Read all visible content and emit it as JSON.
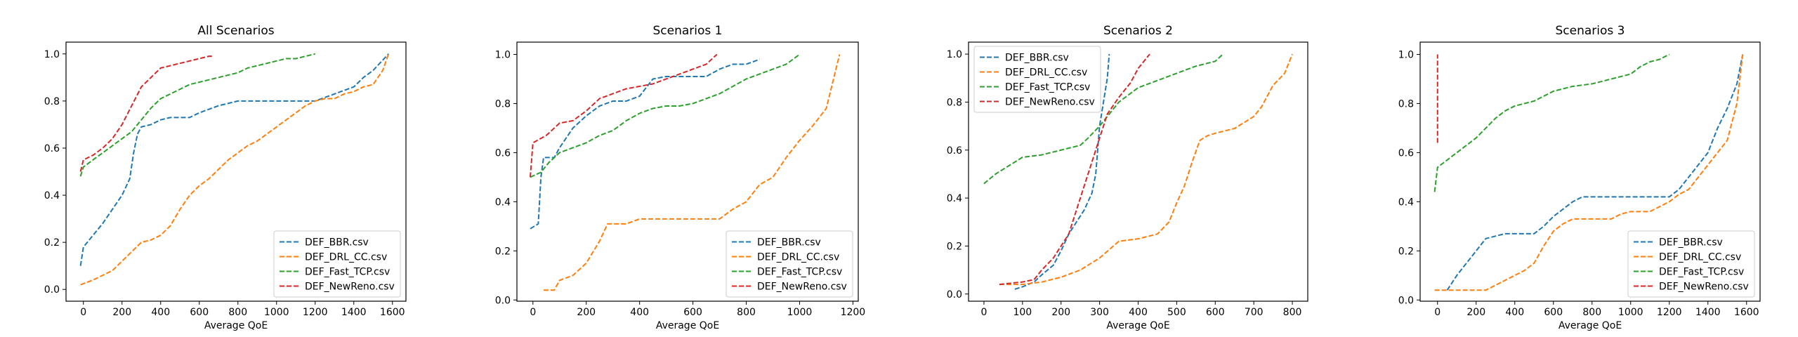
{
  "colors": {
    "DEF_BBR.csv": "#1f77b4",
    "DEF_DRL_CC.csv": "#ff7f0e",
    "DEF_Fast_TCP.csv": "#2ca02c",
    "DEF_NewReno.csv": "#d62728"
  },
  "chart_data": [
    {
      "type": "line",
      "title": "All Scenarios",
      "xlabel": "Average QoE",
      "ylabel": "",
      "xlim": [
        -90,
        1670
      ],
      "ylim": [
        -0.05,
        1.05
      ],
      "xticks": [
        0,
        200,
        400,
        600,
        800,
        1000,
        1200,
        1400,
        1600
      ],
      "yticks": [
        0.0,
        0.2,
        0.4,
        0.6,
        0.8,
        1.0
      ],
      "legend_position": "lower-right",
      "grid": false,
      "series": [
        {
          "name": "DEF_BBR.csv",
          "x": [
            -15,
            0,
            50,
            100,
            150,
            200,
            240,
            260,
            280,
            300,
            350,
            400,
            450,
            550,
            600,
            700,
            800,
            1000,
            1200,
            1300,
            1400,
            1450,
            1500,
            1580
          ],
          "y": [
            0.1,
            0.18,
            0.23,
            0.28,
            0.34,
            0.4,
            0.47,
            0.58,
            0.66,
            0.69,
            0.7,
            0.72,
            0.73,
            0.73,
            0.75,
            0.78,
            0.8,
            0.8,
            0.8,
            0.83,
            0.86,
            0.9,
            0.93,
            1.0
          ]
        },
        {
          "name": "DEF_DRL_CC.csv",
          "x": [
            -15,
            50,
            100,
            150,
            200,
            250,
            300,
            350,
            400,
            450,
            500,
            550,
            600,
            650,
            700,
            750,
            800,
            850,
            900,
            950,
            1000,
            1050,
            1100,
            1150,
            1200,
            1250,
            1300,
            1350,
            1400,
            1450,
            1500,
            1550,
            1580
          ],
          "y": [
            0.02,
            0.04,
            0.06,
            0.08,
            0.12,
            0.16,
            0.2,
            0.21,
            0.23,
            0.27,
            0.34,
            0.4,
            0.44,
            0.47,
            0.51,
            0.55,
            0.58,
            0.61,
            0.63,
            0.66,
            0.69,
            0.72,
            0.75,
            0.78,
            0.8,
            0.81,
            0.81,
            0.83,
            0.84,
            0.86,
            0.87,
            0.93,
            1.0
          ]
        },
        {
          "name": "DEF_Fast_TCP.csv",
          "x": [
            -15,
            0,
            50,
            100,
            150,
            200,
            250,
            300,
            350,
            400,
            450,
            500,
            550,
            600,
            650,
            700,
            750,
            800,
            850,
            900,
            950,
            1000,
            1050,
            1100,
            1150,
            1200
          ],
          "y": [
            0.48,
            0.52,
            0.55,
            0.58,
            0.61,
            0.64,
            0.67,
            0.72,
            0.77,
            0.81,
            0.83,
            0.85,
            0.87,
            0.88,
            0.89,
            0.9,
            0.91,
            0.92,
            0.94,
            0.95,
            0.96,
            0.97,
            0.98,
            0.98,
            0.99,
            1.0
          ]
        },
        {
          "name": "DEF_NewReno.csv",
          "x": [
            -15,
            0,
            50,
            100,
            150,
            200,
            250,
            300,
            350,
            400,
            450,
            500,
            550,
            600,
            650,
            670
          ],
          "y": [
            0.5,
            0.55,
            0.57,
            0.6,
            0.64,
            0.7,
            0.78,
            0.86,
            0.9,
            0.94,
            0.95,
            0.96,
            0.97,
            0.98,
            0.99,
            0.99
          ]
        }
      ]
    },
    {
      "type": "line",
      "title": "Scenarios 1",
      "xlabel": "Average QoE",
      "ylabel": "",
      "xlim": [
        -60,
        1220
      ],
      "ylim": [
        -0.005,
        1.05
      ],
      "xticks": [
        0,
        200,
        400,
        600,
        800,
        1000,
        1200
      ],
      "yticks": [
        0.0,
        0.2,
        0.4,
        0.6,
        0.8,
        1.0
      ],
      "legend_position": "lower-right",
      "grid": false,
      "series": [
        {
          "name": "DEF_BBR.csv",
          "x": [
            -10,
            20,
            30,
            40,
            80,
            100,
            150,
            200,
            250,
            300,
            350,
            400,
            450,
            500,
            550,
            600,
            650,
            700,
            750,
            800,
            850
          ],
          "y": [
            0.29,
            0.31,
            0.5,
            0.58,
            0.58,
            0.62,
            0.7,
            0.75,
            0.79,
            0.81,
            0.81,
            0.83,
            0.9,
            0.91,
            0.91,
            0.91,
            0.91,
            0.94,
            0.96,
            0.96,
            0.98
          ]
        },
        {
          "name": "DEF_DRL_CC.csv",
          "x": [
            40,
            80,
            100,
            150,
            200,
            250,
            280,
            300,
            350,
            400,
            450,
            500,
            550,
            600,
            650,
            700,
            750,
            800,
            850,
            900,
            950,
            1000,
            1050,
            1100,
            1150
          ],
          "y": [
            0.04,
            0.04,
            0.08,
            0.1,
            0.15,
            0.24,
            0.31,
            0.31,
            0.31,
            0.33,
            0.33,
            0.33,
            0.33,
            0.33,
            0.33,
            0.33,
            0.37,
            0.4,
            0.47,
            0.5,
            0.58,
            0.65,
            0.71,
            0.78,
            1.0
          ]
        },
        {
          "name": "DEF_Fast_TCP.csv",
          "x": [
            -10,
            30,
            60,
            100,
            150,
            200,
            250,
            300,
            350,
            400,
            450,
            500,
            550,
            600,
            650,
            700,
            750,
            800,
            850,
            900,
            950,
            1000
          ],
          "y": [
            0.5,
            0.52,
            0.56,
            0.6,
            0.62,
            0.64,
            0.67,
            0.69,
            0.73,
            0.76,
            0.78,
            0.79,
            0.79,
            0.8,
            0.82,
            0.84,
            0.87,
            0.9,
            0.92,
            0.94,
            0.96,
            1.0
          ]
        },
        {
          "name": "DEF_NewReno.csv",
          "x": [
            -10,
            0,
            50,
            100,
            150,
            200,
            250,
            300,
            350,
            400,
            450,
            500,
            550,
            600,
            650,
            690
          ],
          "y": [
            0.5,
            0.64,
            0.67,
            0.72,
            0.73,
            0.77,
            0.82,
            0.84,
            0.86,
            0.87,
            0.88,
            0.9,
            0.92,
            0.94,
            0.96,
            1.0
          ]
        }
      ]
    },
    {
      "type": "line",
      "title": "Scenarios 2",
      "xlabel": "Average QoE",
      "ylabel": "",
      "xlim": [
        -40,
        840
      ],
      "ylim": [
        -0.03,
        1.05
      ],
      "xticks": [
        0,
        100,
        200,
        300,
        400,
        500,
        600,
        700,
        800
      ],
      "yticks": [
        0.0,
        0.2,
        0.4,
        0.6,
        0.8,
        1.0
      ],
      "legend_position": "upper-left",
      "grid": false,
      "series": [
        {
          "name": "DEF_BBR.csv",
          "x": [
            80,
            100,
            130,
            150,
            180,
            200,
            220,
            240,
            260,
            280,
            290,
            300,
            310,
            320,
            325
          ],
          "y": [
            0.02,
            0.03,
            0.05,
            0.08,
            0.12,
            0.18,
            0.25,
            0.3,
            0.35,
            0.42,
            0.5,
            0.7,
            0.8,
            0.9,
            1.0
          ]
        },
        {
          "name": "DEF_DRL_CC.csv",
          "x": [
            40,
            100,
            150,
            200,
            250,
            300,
            350,
            400,
            450,
            480,
            500,
            520,
            540,
            560,
            580,
            600,
            650,
            700,
            720,
            750,
            780,
            800
          ],
          "y": [
            0.04,
            0.04,
            0.05,
            0.07,
            0.1,
            0.15,
            0.22,
            0.23,
            0.25,
            0.3,
            0.38,
            0.45,
            0.55,
            0.64,
            0.66,
            0.67,
            0.69,
            0.74,
            0.78,
            0.87,
            0.92,
            1.0
          ]
        },
        {
          "name": "DEF_Fast_TCP.csv",
          "x": [
            0,
            30,
            50,
            100,
            150,
            200,
            250,
            270,
            300,
            350,
            400,
            450,
            500,
            550,
            600,
            620
          ],
          "y": [
            0.46,
            0.5,
            0.52,
            0.57,
            0.58,
            0.6,
            0.62,
            0.65,
            0.7,
            0.8,
            0.86,
            0.89,
            0.92,
            0.95,
            0.97,
            1.0
          ]
        },
        {
          "name": "DEF_NewReno.csv",
          "x": [
            40,
            100,
            130,
            150,
            180,
            200,
            220,
            240,
            260,
            280,
            300,
            320,
            350,
            380,
            400,
            430
          ],
          "y": [
            0.04,
            0.05,
            0.06,
            0.1,
            0.15,
            0.2,
            0.25,
            0.35,
            0.45,
            0.55,
            0.65,
            0.75,
            0.82,
            0.88,
            0.94,
            1.0
          ]
        }
      ]
    },
    {
      "type": "line",
      "title": "Scenarios 3",
      "xlabel": "Average QoE",
      "ylabel": "",
      "xlim": [
        -90,
        1670
      ],
      "ylim": [
        -0.005,
        1.05
      ],
      "xticks": [
        0,
        200,
        400,
        600,
        800,
        1000,
        1200,
        1400,
        1600
      ],
      "yticks": [
        0.0,
        0.2,
        0.4,
        0.6,
        0.8,
        1.0
      ],
      "legend_position": "lower-right",
      "grid": false,
      "series": [
        {
          "name": "DEF_BBR.csv",
          "x": [
            50,
            100,
            150,
            200,
            250,
            300,
            350,
            400,
            450,
            500,
            550,
            600,
            650,
            700,
            750,
            800,
            900,
            1000,
            1100,
            1200,
            1250,
            1300,
            1350,
            1400,
            1450,
            1500,
            1550,
            1580
          ],
          "y": [
            0.04,
            0.1,
            0.15,
            0.2,
            0.25,
            0.26,
            0.27,
            0.27,
            0.27,
            0.27,
            0.3,
            0.34,
            0.37,
            0.4,
            0.42,
            0.42,
            0.42,
            0.42,
            0.42,
            0.42,
            0.45,
            0.5,
            0.55,
            0.6,
            0.7,
            0.78,
            0.88,
            1.0
          ]
        },
        {
          "name": "DEF_DRL_CC.csv",
          "x": [
            -15,
            50,
            100,
            150,
            200,
            250,
            300,
            350,
            400,
            450,
            500,
            550,
            600,
            650,
            700,
            750,
            800,
            850,
            900,
            950,
            1000,
            1050,
            1100,
            1150,
            1200,
            1250,
            1300,
            1350,
            1400,
            1450,
            1500,
            1550,
            1580
          ],
          "y": [
            0.04,
            0.04,
            0.04,
            0.04,
            0.04,
            0.04,
            0.06,
            0.08,
            0.1,
            0.12,
            0.15,
            0.22,
            0.28,
            0.31,
            0.33,
            0.33,
            0.33,
            0.33,
            0.33,
            0.35,
            0.36,
            0.36,
            0.36,
            0.38,
            0.4,
            0.43,
            0.45,
            0.5,
            0.55,
            0.6,
            0.65,
            0.8,
            1.0
          ]
        },
        {
          "name": "DEF_Fast_TCP.csv",
          "x": [
            -15,
            0,
            50,
            100,
            150,
            200,
            250,
            300,
            350,
            400,
            450,
            500,
            550,
            600,
            650,
            700,
            800,
            900,
            1000,
            1050,
            1100,
            1150,
            1200
          ],
          "y": [
            0.44,
            0.54,
            0.57,
            0.6,
            0.63,
            0.66,
            0.7,
            0.74,
            0.77,
            0.79,
            0.8,
            0.81,
            0.83,
            0.85,
            0.86,
            0.87,
            0.88,
            0.9,
            0.92,
            0.95,
            0.97,
            0.98,
            1.0
          ]
        },
        {
          "name": "DEF_NewReno.csv",
          "x": [
            0,
            0
          ],
          "y": [
            0.64,
            1.0
          ]
        }
      ]
    }
  ]
}
